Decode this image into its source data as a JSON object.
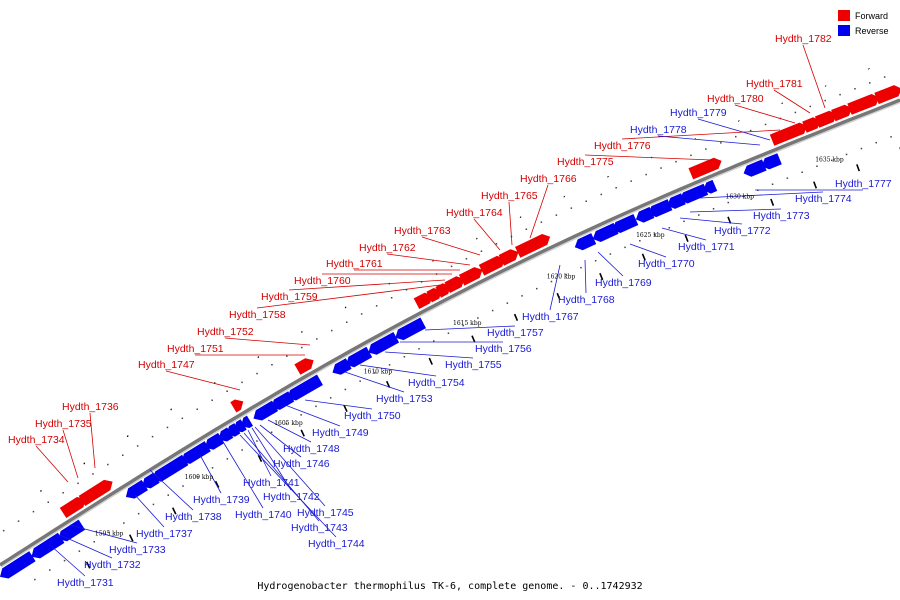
{
  "caption": "Hydrogenobacter thermophilus TK-6, complete genome. - 0..1742932",
  "legend": [
    {
      "label": "Forward",
      "color": "#ee0000"
    },
    {
      "label": "Reverse",
      "color": "#0000ee"
    }
  ],
  "colors": {
    "forward": "#ee0000",
    "reverse": "#0000ee",
    "forward_label": "#d40000",
    "reverse_label": "#1a1ad4",
    "backbone": "#999999"
  },
  "kbp_marks": [
    "1595 kbp",
    "1600 kbp",
    "1605 kbp",
    "1610 kbp",
    "1615 kbp",
    "1620 kbp",
    "1625 kbp",
    "1630 kbp",
    "1635 kbp"
  ],
  "forward_genes": [
    {
      "label": "Hydth_1782",
      "labelPos": [
        775,
        42
      ],
      "anchor": [
        825,
        108
      ]
    },
    {
      "label": "Hydth_1781",
      "labelPos": [
        746,
        87
      ],
      "anchor": [
        810,
        113
      ]
    },
    {
      "label": "Hydth_1780",
      "labelPos": [
        707,
        102
      ],
      "anchor": [
        795,
        123
      ]
    },
    {
      "label": "Hydth_1776",
      "labelPos": [
        594,
        149
      ],
      "anchor": [
        780,
        130
      ]
    },
    {
      "label": "Hydth_1775",
      "labelPos": [
        557,
        165
      ],
      "anchor": [
        712,
        160
      ]
    },
    {
      "label": "Hydth_1766",
      "labelPos": [
        520,
        182
      ],
      "anchor": [
        530,
        238
      ]
    },
    {
      "label": "Hydth_1765",
      "labelPos": [
        481,
        199
      ],
      "anchor": [
        512,
        245
      ]
    },
    {
      "label": "Hydth_1764",
      "labelPos": [
        446,
        216
      ],
      "anchor": [
        500,
        250
      ]
    },
    {
      "label": "Hydth_1763",
      "labelPos": [
        394,
        234
      ],
      "anchor": [
        480,
        255
      ]
    },
    {
      "label": "Hydth_1762",
      "labelPos": [
        359,
        251
      ],
      "anchor": [
        470,
        265
      ]
    },
    {
      "label": "Hydth_1761",
      "labelPos": [
        326,
        267
      ],
      "anchor": [
        460,
        270
      ]
    },
    {
      "label": "Hydth_1760",
      "labelPos": [
        294,
        284
      ],
      "anchor": [
        452,
        274
      ]
    },
    {
      "label": "Hydth_1759",
      "labelPos": [
        261,
        300
      ],
      "anchor": [
        445,
        280
      ]
    },
    {
      "label": "Hydth_1758",
      "labelPos": [
        229,
        318
      ],
      "anchor": [
        440,
        285
      ]
    },
    {
      "label": "Hydth_1752",
      "labelPos": [
        197,
        335
      ],
      "anchor": [
        310,
        345
      ]
    },
    {
      "label": "Hydth_1751",
      "labelPos": [
        167,
        352
      ],
      "anchor": [
        305,
        355
      ]
    },
    {
      "label": "Hydth_1747",
      "labelPos": [
        138,
        368
      ],
      "anchor": [
        240,
        390
      ]
    },
    {
      "label": "Hydth_1736",
      "labelPos": [
        62,
        410
      ],
      "anchor": [
        95,
        468
      ]
    },
    {
      "label": "Hydth_1735",
      "labelPos": [
        35,
        427
      ],
      "anchor": [
        78,
        478
      ]
    },
    {
      "label": "Hydth_1734",
      "labelPos": [
        8,
        443
      ],
      "anchor": [
        68,
        482
      ]
    }
  ],
  "reverse_genes": [
    {
      "label": "Hydth_1779",
      "labelPos": [
        670,
        116
      ],
      "anchor": [
        770,
        140
      ]
    },
    {
      "label": "Hydth_1778",
      "labelPos": [
        630,
        133
      ],
      "anchor": [
        760,
        145
      ]
    },
    {
      "label": "Hydth_1777",
      "labelPos": [
        835,
        187
      ],
      "anchor": [
        755,
        190
      ]
    },
    {
      "label": "Hydth_1774",
      "labelPos": [
        795,
        202
      ],
      "anchor": [
        700,
        198
      ]
    },
    {
      "label": "Hydth_1773",
      "labelPos": [
        753,
        219
      ],
      "anchor": [
        690,
        212
      ]
    },
    {
      "label": "Hydth_1772",
      "labelPos": [
        714,
        234
      ],
      "anchor": [
        680,
        218
      ]
    },
    {
      "label": "Hydth_1771",
      "labelPos": [
        678,
        250
      ],
      "anchor": [
        662,
        228
      ]
    },
    {
      "label": "Hydth_1770",
      "labelPos": [
        638,
        267
      ],
      "anchor": [
        630,
        244
      ]
    },
    {
      "label": "Hydth_1769",
      "labelPos": [
        595,
        286
      ],
      "anchor": [
        598,
        252
      ]
    },
    {
      "label": "Hydth_1768",
      "labelPos": [
        558,
        303
      ],
      "anchor": [
        585,
        260
      ]
    },
    {
      "label": "Hydth_1767",
      "labelPos": [
        522,
        320
      ],
      "anchor": [
        560,
        265
      ]
    },
    {
      "label": "Hydth_1757",
      "labelPos": [
        487,
        336
      ],
      "anchor": [
        425,
        330
      ]
    },
    {
      "label": "Hydth_1756",
      "labelPos": [
        475,
        352
      ],
      "anchor": [
        400,
        342
      ]
    },
    {
      "label": "Hydth_1755",
      "labelPos": [
        445,
        368
      ],
      "anchor": [
        385,
        352
      ]
    },
    {
      "label": "Hydth_1754",
      "labelPos": [
        408,
        386
      ],
      "anchor": [
        360,
        365
      ]
    },
    {
      "label": "Hydth_1753",
      "labelPos": [
        376,
        402
      ],
      "anchor": [
        345,
        372
      ]
    },
    {
      "label": "Hydth_1750",
      "labelPos": [
        344,
        419
      ],
      "anchor": [
        305,
        400
      ]
    },
    {
      "label": "Hydth_1749",
      "labelPos": [
        312,
        436
      ],
      "anchor": [
        285,
        405
      ]
    },
    {
      "label": "Hydth_1748",
      "labelPos": [
        283,
        452
      ],
      "anchor": [
        268,
        420
      ]
    },
    {
      "label": "Hydth_1746",
      "labelPos": [
        273,
        467
      ],
      "anchor": [
        260,
        425
      ]
    },
    {
      "label": "Hydth_1741",
      "labelPos": [
        243,
        486
      ],
      "anchor": [
        248,
        430
      ]
    },
    {
      "label": "Hydth_1742",
      "labelPos": [
        263,
        500
      ],
      "anchor": [
        252,
        428
      ]
    },
    {
      "label": "Hydth_1745",
      "labelPos": [
        297,
        516
      ],
      "anchor": [
        255,
        427
      ]
    },
    {
      "label": "Hydth_1743",
      "labelPos": [
        291,
        531
      ],
      "anchor": [
        244,
        433
      ]
    },
    {
      "label": "Hydth_1744",
      "labelPos": [
        308,
        547
      ],
      "anchor": [
        240,
        435
      ]
    },
    {
      "label": "Hydth_1740",
      "labelPos": [
        235,
        518
      ],
      "anchor": [
        222,
        440
      ]
    },
    {
      "label": "Hydth_1739",
      "labelPos": [
        193,
        503
      ],
      "anchor": [
        200,
        455
      ]
    },
    {
      "label": "Hydth_1738",
      "labelPos": [
        165,
        520
      ],
      "anchor": [
        150,
        470
      ]
    },
    {
      "label": "Hydth_1737",
      "labelPos": [
        136,
        537
      ],
      "anchor": [
        135,
        495
      ]
    },
    {
      "label": "Hydth_1733",
      "labelPos": [
        109,
        553
      ],
      "anchor": [
        70,
        525
      ]
    },
    {
      "label": "Hydth_1732",
      "labelPos": [
        84,
        568
      ],
      "anchor": [
        60,
        535
      ]
    },
    {
      "label": "Hydth_1731",
      "labelPos": [
        57,
        586
      ],
      "anchor": [
        50,
        545
      ]
    }
  ]
}
